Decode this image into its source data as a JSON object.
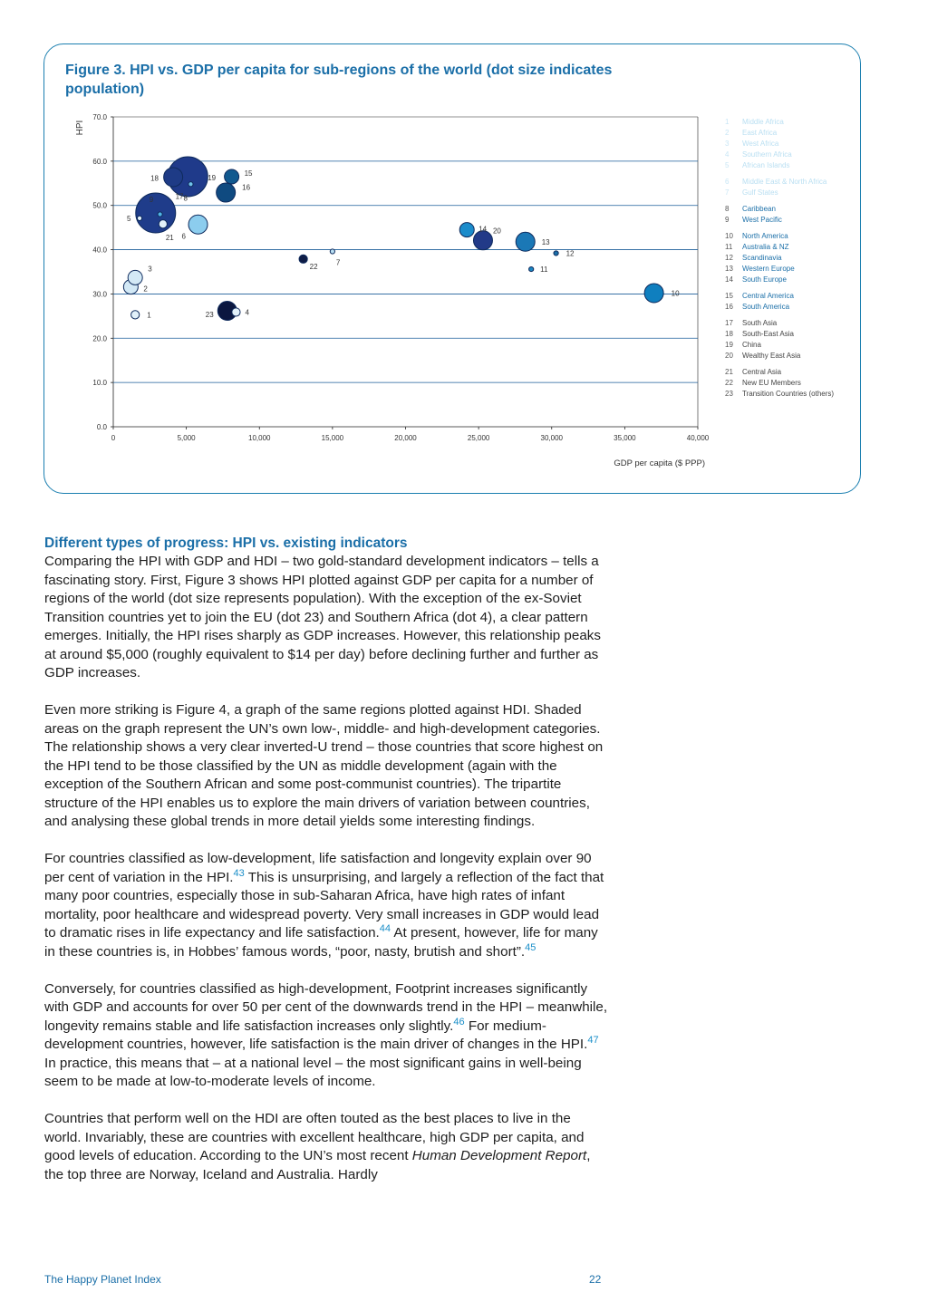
{
  "figure": {
    "title": "Figure 3. HPI vs. GDP per capita for sub-regions of the world (dot size indicates population)"
  },
  "chart_data": {
    "type": "scatter",
    "xlabel": "GDP per capita ($ PPP)",
    "ylabel": "HPI",
    "xlim": [
      0,
      40000
    ],
    "ylim": [
      0,
      70
    ],
    "x_ticks": [
      "0",
      "5,000",
      "10,000",
      "15,000",
      "20,000",
      "25,000",
      "30,000",
      "35,000",
      "40,000"
    ],
    "y_ticks": [
      "0.0",
      "10.0",
      "20.0",
      "30.0",
      "40.0",
      "50.0",
      "60.0",
      "70.0"
    ],
    "grid": "horizontal",
    "legend_position": "right",
    "legend": [
      {
        "id": "1",
        "name": "Middle Africa"
      },
      {
        "id": "2",
        "name": "East Africa"
      },
      {
        "id": "3",
        "name": "West Africa"
      },
      {
        "id": "4",
        "name": "Southern Africa"
      },
      {
        "id": "5",
        "name": "African Islands"
      },
      {
        "id": "6",
        "name": "Middle East & North Africa"
      },
      {
        "id": "7",
        "name": "Gulf States"
      },
      {
        "id": "8",
        "name": "Caribbean"
      },
      {
        "id": "9",
        "name": "West Pacific"
      },
      {
        "id": "10",
        "name": "North America"
      },
      {
        "id": "11",
        "name": "Australia & NZ"
      },
      {
        "id": "12",
        "name": "Scandinavia"
      },
      {
        "id": "13",
        "name": "Western Europe"
      },
      {
        "id": "14",
        "name": "South Europe"
      },
      {
        "id": "15",
        "name": "Central America"
      },
      {
        "id": "16",
        "name": "South America"
      },
      {
        "id": "17",
        "name": "South Asia"
      },
      {
        "id": "18",
        "name": "South-East Asia"
      },
      {
        "id": "19",
        "name": "China"
      },
      {
        "id": "20",
        "name": "Wealthy East Asia"
      },
      {
        "id": "21",
        "name": "Central Asia"
      },
      {
        "id": "22",
        "name": "New EU Members"
      },
      {
        "id": "23",
        "name": "Transition Countries (others)"
      }
    ],
    "points": [
      {
        "id": "1",
        "x": 1500,
        "y": 25.3,
        "population": "small",
        "color": "#e2f1fa"
      },
      {
        "id": "2",
        "x": 1200,
        "y": 31.6,
        "population": "medium",
        "color": "#d3e9f6"
      },
      {
        "id": "3",
        "x": 1500,
        "y": 33.7,
        "population": "medium",
        "color": "#d3e9f6"
      },
      {
        "id": "4",
        "x": 8400,
        "y": 25.9,
        "population": "small",
        "color": "#e2f1fa"
      },
      {
        "id": "5",
        "x": 1800,
        "y": 47.1,
        "population": "tiny",
        "color": "#e2f1fa"
      },
      {
        "id": "6",
        "x": 5800,
        "y": 45.7,
        "population": "large",
        "color": "#8ccdee"
      },
      {
        "id": "7",
        "x": 15000,
        "y": 39.6,
        "population": "tiny",
        "color": "#b9e0f4"
      },
      {
        "id": "8",
        "x": 5300,
        "y": 54.8,
        "population": "tiny",
        "color": "#6fc2ea"
      },
      {
        "id": "9",
        "x": 2900,
        "y": 48.3,
        "population": "very large",
        "color": "#1f3c8a"
      },
      {
        "id": "10",
        "x": 37000,
        "y": 30.2,
        "population": "large",
        "color": "#0f7fbf"
      },
      {
        "id": "11",
        "x": 28600,
        "y": 35.6,
        "population": "tiny",
        "color": "#1a86c2"
      },
      {
        "id": "12",
        "x": 30300,
        "y": 39.2,
        "population": "tiny",
        "color": "#1a6fa8"
      },
      {
        "id": "13",
        "x": 28200,
        "y": 41.8,
        "population": "large",
        "color": "#1b78b6"
      },
      {
        "id": "14",
        "x": 24200,
        "y": 44.5,
        "population": "medium",
        "color": "#1b8ccb"
      },
      {
        "id": "15",
        "x": 8100,
        "y": 56.5,
        "population": "medium",
        "color": "#11598f"
      },
      {
        "id": "16",
        "x": 7700,
        "y": 52.9,
        "population": "large",
        "color": "#0f4a80"
      },
      {
        "id": "17",
        "x": 3200,
        "y": 48.0,
        "population": "tiny",
        "color": "#4fb3e4"
      },
      {
        "id": "18",
        "x": 4100,
        "y": 56.4,
        "population": "large",
        "color": "#1e3b86"
      },
      {
        "id": "19",
        "x": 5100,
        "y": 56.5,
        "population": "very large",
        "color": "#1f3a8a"
      },
      {
        "id": "20",
        "x": 25300,
        "y": 42.1,
        "population": "large",
        "color": "#223a88"
      },
      {
        "id": "21",
        "x": 3400,
        "y": 45.8,
        "population": "small",
        "color": "#e2f1fa"
      },
      {
        "id": "22",
        "x": 13000,
        "y": 37.9,
        "population": "small",
        "color": "#0e1c46"
      },
      {
        "id": "23",
        "x": 7800,
        "y": 26.2,
        "population": "large",
        "color": "#0b1740"
      }
    ]
  },
  "article": {
    "heading": "Different types of progress: HPI vs. existing indicators",
    "p1": "Comparing the HPI with GDP and HDI – two gold-standard development indicators – tells a fascinating story. First, Figure 3 shows HPI plotted against GDP per capita for a number of regions of the world (dot size represents population). With the exception of the ex-Soviet Transition countries yet to join the EU (dot 23) and Southern Africa (dot 4), a clear pattern emerges. Initially, the HPI rises sharply as GDP increases. However, this relationship peaks at around $5,000 (roughly equivalent to $14 per day) before declining further and further as GDP increases.",
    "p2": "Even more striking is Figure 4, a graph of the same regions plotted against HDI. Shaded areas on the graph represent the UN’s own low-, middle- and high-development categories. The relationship shows a very clear inverted-U trend – those countries that score highest on the HPI tend to be those classified by the UN as middle development (again with the exception of the Southern African and some post-communist countries). The tripartite structure of the HPI enables us to explore the main drivers of variation between countries, and analysing these global trends in more detail yields some interesting findings.",
    "p3a": "For countries classified as low-development, life satisfaction and longevity explain over 90 per cent of variation in the HPI.",
    "fn43": "43",
    "p3b": " This is unsurprising, and largely a reflection of the fact that many poor countries, especially those in sub-Saharan Africa, have high rates of infant mortality, poor healthcare and widespread poverty. Very small increases in GDP would lead to dramatic rises in life expectancy and life satisfaction.",
    "fn44": "44",
    "p3c": " At present, however, life for many in these countries is, in Hobbes’ famous words, “poor, nasty, brutish and short”.",
    "fn45": "45",
    "p4a": "Conversely, for countries classified as high-development, Footprint increases significantly with GDP and accounts for over 50 per cent of the downwards trend in the HPI – meanwhile, longevity remains stable and life satisfaction increases only slightly.",
    "fn46": "46",
    "p4b": " For medium-development countries, however, life satisfaction is the main driver of changes in the HPI.",
    "fn47": "47",
    "p4c": " In practice, this means that – at a national level – the most significant gains in well-being seem to be made at low-to-moderate levels of income.",
    "p5a": "Countries that perform well on the HDI are often touted as the best places to live in the world. Invariably, these are countries with excellent healthcare, high GDP per capita, and good levels of education. According to the UN’s most recent ",
    "p5italic": "Human Development Report",
    "p5b": ", the top three are Norway, Iceland and Australia. Hardly"
  },
  "footer": {
    "left": "The Happy Planet Index",
    "page": "22"
  }
}
